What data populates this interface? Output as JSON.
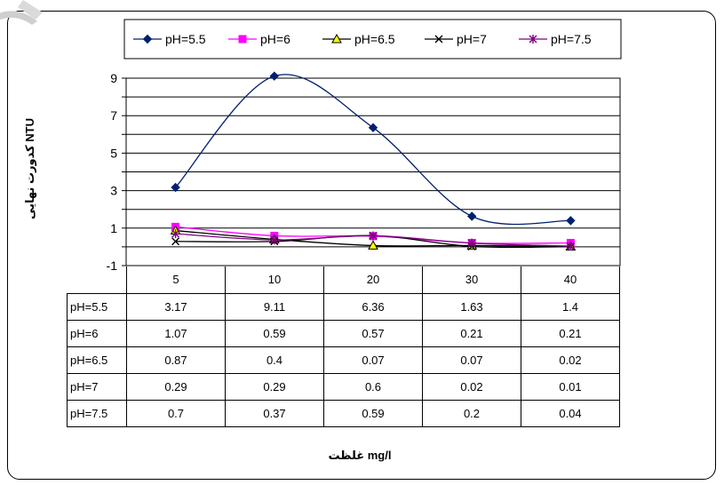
{
  "chart_data": {
    "type": "line",
    "categories": [
      "5",
      "10",
      "20",
      "30",
      "40"
    ],
    "ylabel": "کدورت نهایی NTU",
    "xlabel": "غلظت mg/l",
    "ylim": [
      -1,
      9
    ],
    "yticks": [
      "9",
      "7",
      "5",
      "3",
      "1",
      "-1"
    ],
    "grid": true,
    "legend_position": "top",
    "series": [
      {
        "name": "pH=5.5",
        "values": [
          3.17,
          9.11,
          6.36,
          1.63,
          1.4
        ],
        "color": "#00206E",
        "marker": "diamond"
      },
      {
        "name": "pH=6",
        "values": [
          1.07,
          0.59,
          0.57,
          0.21,
          0.21
        ],
        "color": "#FF00FF",
        "marker": "square"
      },
      {
        "name": "pH=6.5",
        "values": [
          0.87,
          0.4,
          0.07,
          0.07,
          0.02
        ],
        "color": "#000000",
        "marker": "triangle"
      },
      {
        "name": "pH=7",
        "values": [
          0.29,
          0.29,
          0.6,
          0.02,
          0.01
        ],
        "color": "#000000",
        "marker": "x"
      },
      {
        "name": "pH=7.5",
        "values": [
          0.7,
          0.37,
          0.59,
          0.2,
          0.04
        ],
        "color": "#800080",
        "marker": "star"
      }
    ]
  },
  "table": {
    "header": [
      "5",
      "10",
      "20",
      "30",
      "40"
    ],
    "rows": [
      {
        "label": "pH=5.5",
        "cells": [
          "3.17",
          "9.11",
          "6.36",
          "1.63",
          "1.4"
        ]
      },
      {
        "label": "pH=6",
        "cells": [
          "1.07",
          "0.59",
          "0.57",
          "0.21",
          "0.21"
        ]
      },
      {
        "label": "pH=6.5",
        "cells": [
          "0.87",
          "0.4",
          "0.07",
          "0.07",
          "0.02"
        ]
      },
      {
        "label": "pH=7",
        "cells": [
          "0.29",
          "0.29",
          "0.6",
          "0.02",
          "0.01"
        ]
      },
      {
        "label": "pH=7.5",
        "cells": [
          "0.7",
          "0.37",
          "0.59",
          "0.2",
          "0.04"
        ]
      }
    ]
  }
}
